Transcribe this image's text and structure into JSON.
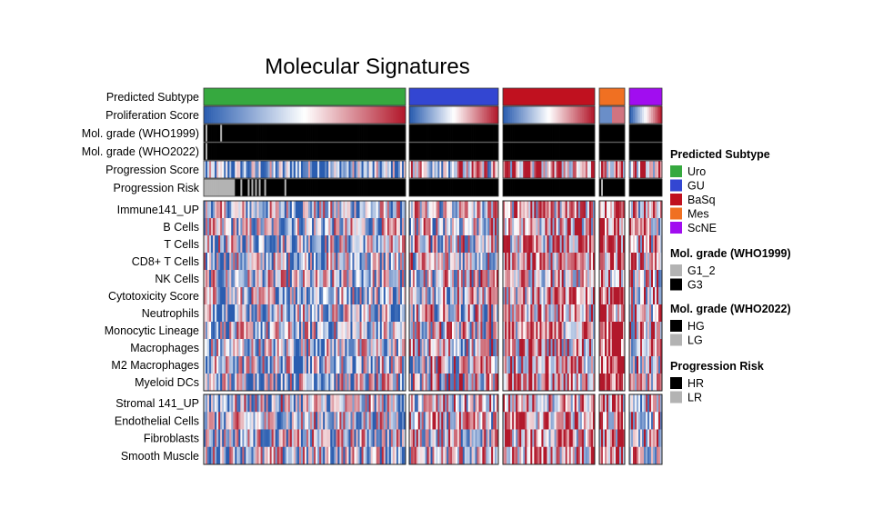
{
  "chart_data": {
    "type": "heatmap",
    "title": "Molecular Signatures",
    "groups": [
      {
        "name": "Uro",
        "color": "#36A93F",
        "n": 110
      },
      {
        "name": "GU",
        "color": "#3346D2",
        "n": 50
      },
      {
        "name": "BaSq",
        "color": "#C0111F",
        "n": 50
      },
      {
        "name": "Mes",
        "color": "#F07022",
        "n": 14
      },
      {
        "name": "ScNE",
        "color": "#A10DF0",
        "n": 18
      }
    ],
    "annotation_rows": [
      {
        "label": "Predicted Subtype",
        "kind": "subtype"
      },
      {
        "label": "Proliferation Score",
        "kind": "gradient"
      },
      {
        "label": "Mol. grade (WHO1999)",
        "kind": "grade99"
      },
      {
        "label": "Mol. grade (WHO2022)",
        "kind": "grade22"
      },
      {
        "label": "Progression Score",
        "kind": "noisy"
      },
      {
        "label": "Progression Risk",
        "kind": "risk"
      }
    ],
    "immune_rows": [
      "Immune141_UP",
      "B Cells",
      "T Cells",
      "CD8+ T Cells",
      "NK Cells",
      "Cytotoxicity Score",
      "Neutrophils",
      "Monocytic Lineage",
      "Macrophages",
      "M2 Macrophages",
      "Myeloid DCs"
    ],
    "stromal_rows": [
      "Stromal 141_UP",
      "Endothelial Cells",
      "Fibroblasts",
      "Smooth Muscle"
    ],
    "color_scale": {
      "low": "#2A5DB0",
      "mid": "#FFFFFF",
      "high": "#B2182B"
    },
    "value_range": [
      -1,
      1
    ],
    "legends": [
      {
        "title": "Predicted Subtype",
        "items": [
          {
            "label": "Uro",
            "color": "#36A93F"
          },
          {
            "label": "GU",
            "color": "#3346D2"
          },
          {
            "label": "BaSq",
            "color": "#C0111F"
          },
          {
            "label": "Mes",
            "color": "#F07022"
          },
          {
            "label": "ScNE",
            "color": "#A10DF0"
          }
        ]
      },
      {
        "title": "Mol. grade (WHO1999)",
        "items": [
          {
            "label": "G1_2",
            "color": "#B3B3B3"
          },
          {
            "label": "G3",
            "color": "#000000"
          }
        ]
      },
      {
        "title": "Mol. grade (WHO2022)",
        "items": [
          {
            "label": "HG",
            "color": "#000000"
          },
          {
            "label": "LG",
            "color": "#B3B3B3"
          }
        ]
      },
      {
        "title": "Progression Risk",
        "items": [
          {
            "label": "HR",
            "color": "#000000"
          },
          {
            "label": "LR",
            "color": "#B3B3B3"
          }
        ]
      }
    ]
  }
}
